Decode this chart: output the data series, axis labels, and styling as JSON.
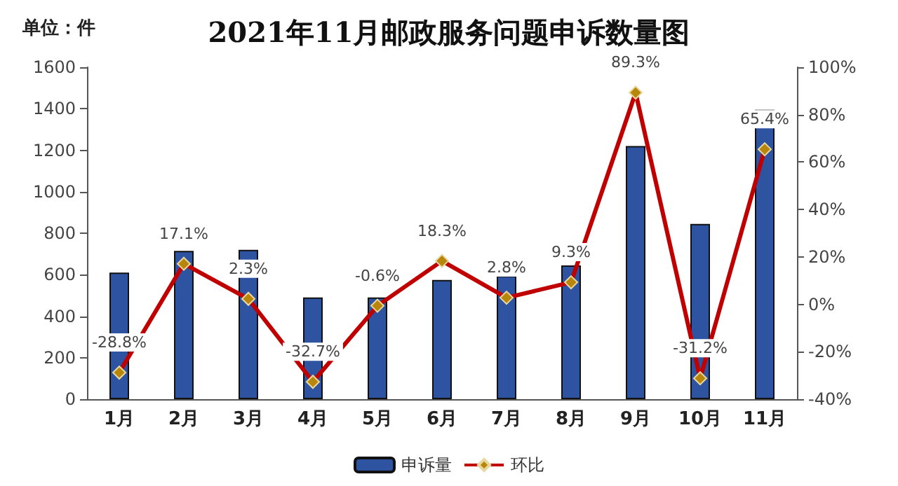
{
  "chart_data": {
    "type": "bar",
    "title": "2021年11月邮政服务问题申诉数量图",
    "annotations": [
      "单位：件"
    ],
    "categories": [
      "1月",
      "2月",
      "3月",
      "4月",
      "5月",
      "6月",
      "7月",
      "8月",
      "9月",
      "10月",
      "11月"
    ],
    "series": [
      {
        "name": "申诉量",
        "color": "#2e53a0",
        "values": [
          610,
          715,
          720,
          490,
          490,
          575,
          595,
          645,
          1220,
          845,
          1395
        ]
      },
      {
        "name": "环比",
        "type": "line",
        "axis": "y2",
        "color": "#c00000",
        "marker": "diamond",
        "values": [
          -28.8,
          17.1,
          2.3,
          -32.7,
          -0.6,
          18.3,
          2.8,
          9.3,
          89.3,
          -31.2,
          65.4
        ],
        "value_labels": [
          "-28.8%",
          "17.1%",
          "2.3%",
          "-32.7%",
          "-0.6%",
          "18.3%",
          "2.8%",
          "9.3%",
          "89.3%",
          "-31.2%",
          "65.4%"
        ]
      }
    ],
    "ylim": [
      0,
      1600
    ],
    "yticks": [
      0,
      200,
      400,
      600,
      800,
      1000,
      1200,
      1400,
      1600
    ],
    "y2lim": [
      -40,
      100
    ],
    "y2ticks": [
      {
        "value": -40,
        "label": "-40%"
      },
      {
        "value": -20,
        "label": "-20%"
      },
      {
        "value": 0,
        "label": "0%"
      },
      {
        "value": 20,
        "label": "20%"
      },
      {
        "value": 40,
        "label": "40%"
      },
      {
        "value": 60,
        "label": "60%"
      },
      {
        "value": 80,
        "label": "80%"
      },
      {
        "value": 100,
        "label": "100%"
      }
    ],
    "grid": false,
    "legend": "bottom"
  }
}
